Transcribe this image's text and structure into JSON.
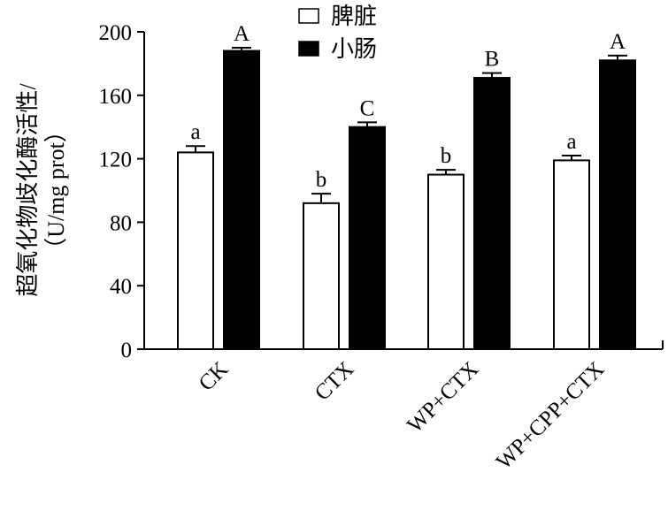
{
  "chart_data": {
    "type": "bar",
    "categories": [
      "CK",
      "CTX",
      "WP+CTX",
      "WP+CPP+CTX"
    ],
    "series": [
      {
        "name": "脾脏",
        "values": [
          124,
          92,
          110,
          119
        ],
        "errors": [
          4,
          6,
          3,
          3
        ],
        "labels": [
          "a",
          "b",
          "b",
          "a"
        ],
        "fill": "#ffffff"
      },
      {
        "name": "小肠",
        "values": [
          188,
          140,
          171,
          182
        ],
        "errors": [
          2,
          3,
          3,
          3
        ],
        "labels": [
          "A",
          "C",
          "B",
          "A"
        ],
        "fill": "#000000"
      }
    ],
    "ylabel_line1": "超氧化物歧化酶活性/",
    "ylabel_line2": "（U/mg prot）",
    "ylim": [
      0,
      200
    ],
    "yticks": [
      0,
      40,
      80,
      120,
      160,
      200
    ],
    "grid": false,
    "legend_position": "top-center"
  }
}
